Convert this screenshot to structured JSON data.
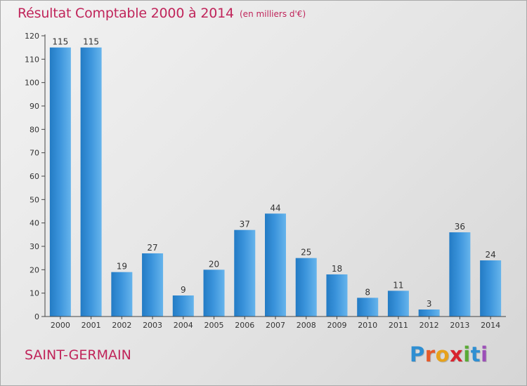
{
  "header": {
    "title": "Résultat Comptable 2000 à 2014",
    "subtitle": "(en milliers d'€)"
  },
  "footer": {
    "place": "SAINT-GERMAIN",
    "logo_letters": [
      "P",
      "r",
      "o",
      "x",
      "i",
      "t",
      "i"
    ],
    "logo_colors": [
      "#2f8fd2",
      "#e65a2a",
      "#e7a21c",
      "#d8242f",
      "#5aaa35",
      "#2f8fd2",
      "#9c4fb8"
    ]
  },
  "chart_data": {
    "type": "bar",
    "title": "Résultat Comptable 2000 à 2014",
    "subtitle": "(en milliers d'€)",
    "xlabel": "",
    "ylabel": "",
    "categories": [
      "2000",
      "2001",
      "2002",
      "2003",
      "2004",
      "2005",
      "2006",
      "2007",
      "2008",
      "2009",
      "2010",
      "2011",
      "2012",
      "2013",
      "2014"
    ],
    "values": [
      115,
      115,
      19,
      27,
      9,
      20,
      37,
      44,
      25,
      18,
      8,
      11,
      3,
      36,
      24
    ],
    "ylim": [
      0,
      120
    ],
    "yticks": [
      0,
      10,
      20,
      30,
      40,
      50,
      60,
      70,
      80,
      90,
      100,
      110,
      120
    ],
    "grid": false,
    "bar_color": "#3a93db",
    "bar_color_light": "#66b4ec",
    "bar_color_dark": "#237bc4"
  }
}
